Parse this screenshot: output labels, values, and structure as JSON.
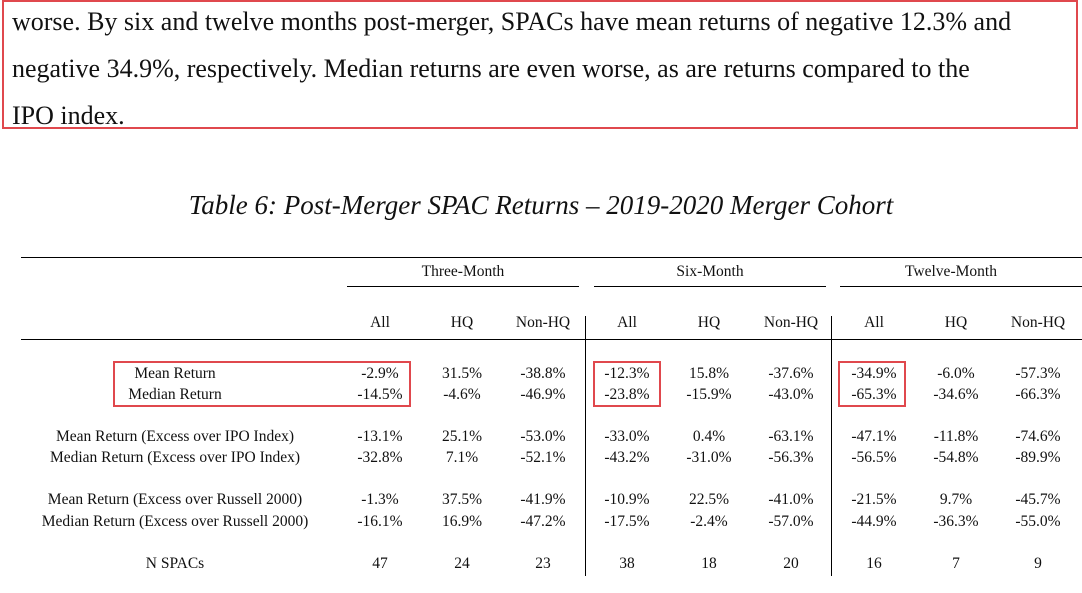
{
  "paragraph": {
    "line1": "worse.  By six and twelve months post-merger, SPACs have mean returns of negative 12.3% and",
    "line2": "negative 34.9%, respectively.  Median returns are even worse, as are returns compared to the",
    "line3": "IPO index."
  },
  "table": {
    "title": "Table 6: Post-Merger SPAC Returns – 2019-2020 Merger Cohort",
    "groups": [
      "Three-Month",
      "Six-Month",
      "Twelve-Month"
    ],
    "columns": [
      "All",
      "HQ",
      "Non-HQ",
      "All",
      "HQ",
      "Non-HQ",
      "All",
      "HQ",
      "Non-HQ"
    ],
    "rows": [
      {
        "label": "Mean Return",
        "values": [
          "-2.9%",
          "31.5%",
          "-38.8%",
          "-12.3%",
          "15.8%",
          "-37.6%",
          "-34.9%",
          "-6.0%",
          "-57.3%"
        ]
      },
      {
        "label": "Median Return",
        "values": [
          "-14.5%",
          "-4.6%",
          "-46.9%",
          "-23.8%",
          "-15.9%",
          "-43.0%",
          "-65.3%",
          "-34.6%",
          "-66.3%"
        ]
      },
      {
        "label": "Mean Return (Excess over IPO Index)",
        "values": [
          "-13.1%",
          "25.1%",
          "-53.0%",
          "-33.0%",
          "0.4%",
          "-63.1%",
          "-47.1%",
          "-11.8%",
          "-74.6%"
        ]
      },
      {
        "label": "Median Return (Excess over IPO Index)",
        "values": [
          "-32.8%",
          "7.1%",
          "-52.1%",
          "-43.2%",
          "-31.0%",
          "-56.3%",
          "-56.5%",
          "-54.8%",
          "-89.9%"
        ]
      },
      {
        "label": "Mean Return (Excess over Russell 2000)",
        "values": [
          "-1.3%",
          "37.5%",
          "-41.9%",
          "-10.9%",
          "22.5%",
          "-41.0%",
          "-21.5%",
          "9.7%",
          "-45.7%"
        ]
      },
      {
        "label": "Median Return (Excess over Russell 2000)",
        "values": [
          "-16.1%",
          "16.9%",
          "-47.2%",
          "-17.5%",
          "-2.4%",
          "-57.0%",
          "-44.9%",
          "-36.3%",
          "-55.0%"
        ]
      },
      {
        "label": "N SPACs",
        "values": [
          "47",
          "24",
          "23",
          "38",
          "18",
          "20",
          "16",
          "7",
          "9"
        ]
      }
    ]
  },
  "highlight_color": "#e0484d"
}
